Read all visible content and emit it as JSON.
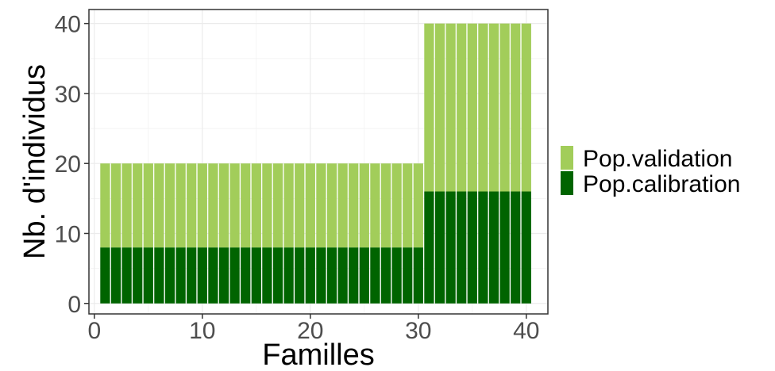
{
  "chart_data": {
    "type": "bar",
    "stacked": true,
    "title": "",
    "xlabel": "Familles",
    "ylabel": "Nb. d'individus",
    "x": [
      1,
      2,
      3,
      4,
      5,
      6,
      7,
      8,
      9,
      10,
      11,
      12,
      13,
      14,
      15,
      16,
      17,
      18,
      19,
      20,
      21,
      22,
      23,
      24,
      25,
      26,
      27,
      28,
      29,
      30,
      31,
      32,
      33,
      34,
      35,
      36,
      37,
      38,
      39,
      40
    ],
    "xlim": [
      -0.5,
      42
    ],
    "ylim": [
      -1.5,
      42
    ],
    "xticks": [
      0,
      10,
      20,
      30,
      40
    ],
    "yticks": [
      0,
      10,
      20,
      30,
      40
    ],
    "xtick_labels": [
      "0",
      "10",
      "20",
      "30",
      "40"
    ],
    "ytick_labels": [
      "0",
      "10",
      "20",
      "30",
      "40"
    ],
    "grid": true,
    "legend_position": "right",
    "series": [
      {
        "name": "Pop.calibration",
        "color": "#006400",
        "values": [
          8,
          8,
          8,
          8,
          8,
          8,
          8,
          8,
          8,
          8,
          8,
          8,
          8,
          8,
          8,
          8,
          8,
          8,
          8,
          8,
          8,
          8,
          8,
          8,
          8,
          8,
          8,
          8,
          8,
          8,
          16,
          16,
          16,
          16,
          16,
          16,
          16,
          16,
          16,
          16
        ]
      },
      {
        "name": "Pop.validation",
        "color": "#a2cd5a",
        "values": [
          12,
          12,
          12,
          12,
          12,
          12,
          12,
          12,
          12,
          12,
          12,
          12,
          12,
          12,
          12,
          12,
          12,
          12,
          12,
          12,
          12,
          12,
          12,
          12,
          12,
          12,
          12,
          12,
          12,
          12,
          24,
          24,
          24,
          24,
          24,
          24,
          24,
          24,
          24,
          24
        ]
      }
    ],
    "legend_order": [
      "Pop.validation",
      "Pop.calibration"
    ]
  }
}
